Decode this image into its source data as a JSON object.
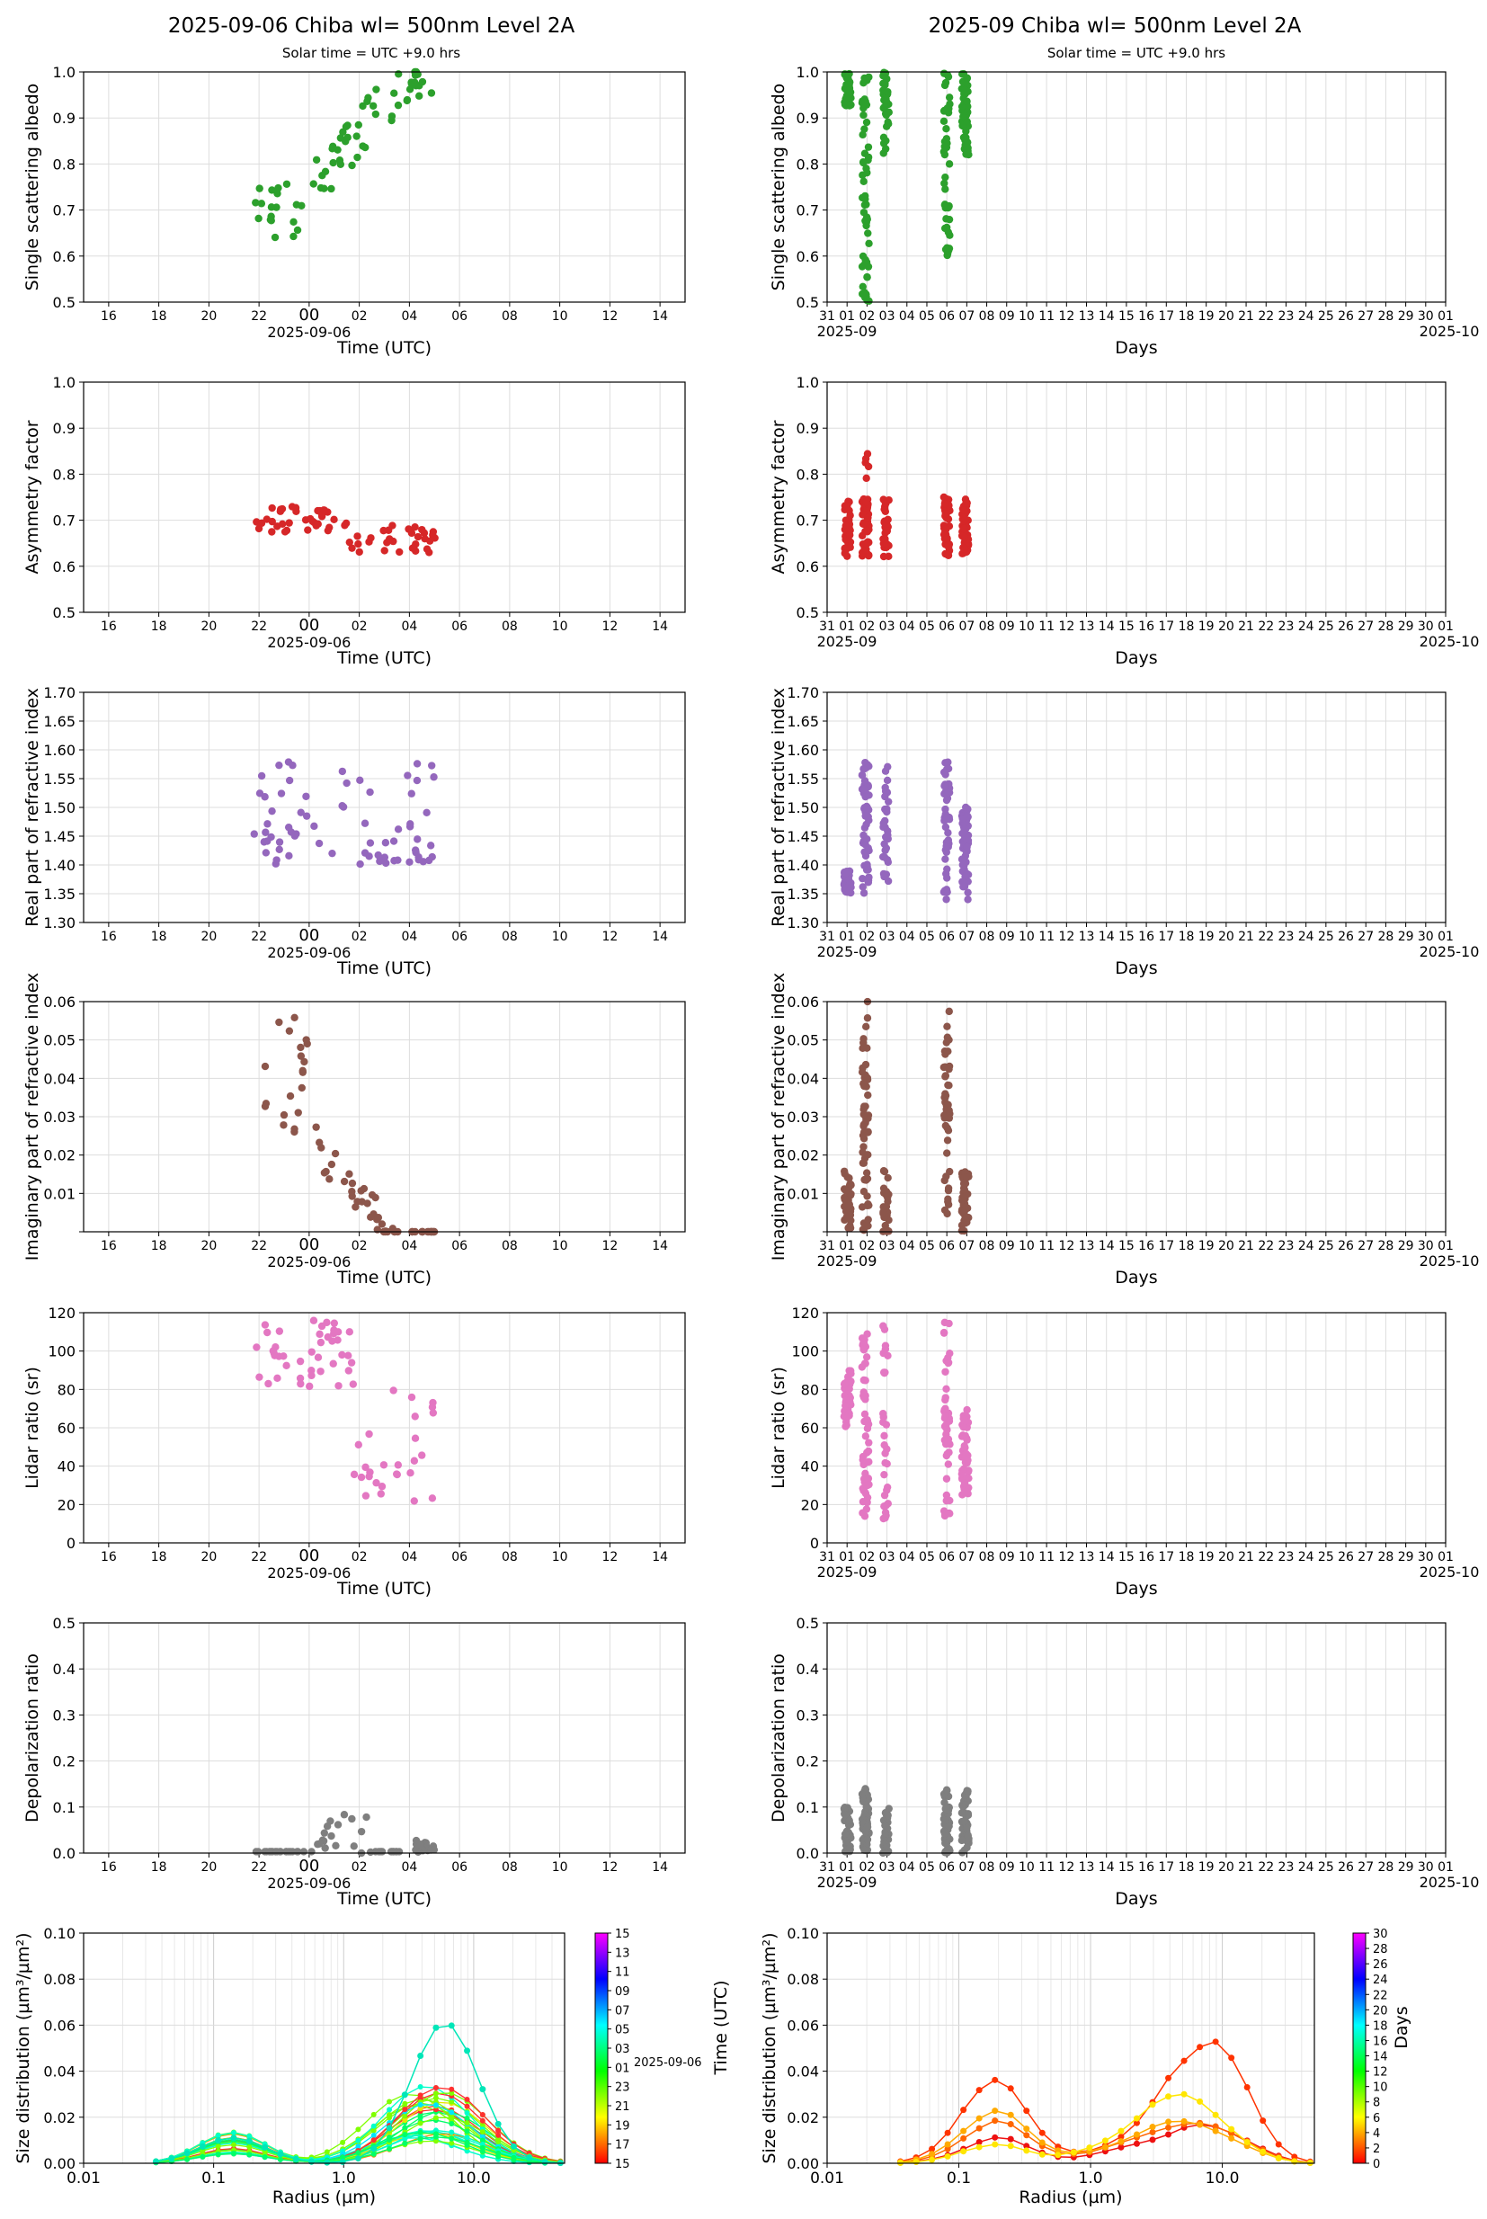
{
  "left_column": {
    "title": "2025-09-06  Chiba  wl= 500nm  Level 2A",
    "subtitle": "Solar time = UTC +9.0 hrs",
    "time_tick_labels": [
      "16",
      "18",
      "20",
      "22",
      "00",
      "02",
      "04",
      "06",
      "08",
      "10",
      "12",
      "14"
    ],
    "date_label": "2025-09-06",
    "xlabel": "Time (UTC)"
  },
  "right_column": {
    "title": "2025-09  Chiba  wl= 500nm  Level 2A",
    "subtitle": "Solar time = UTC +9.0 hrs",
    "day_tick_labels": [
      "31",
      "01",
      "02",
      "03",
      "04",
      "05",
      "06",
      "07",
      "08",
      "09",
      "10",
      "11",
      "12",
      "13",
      "14",
      "15",
      "16",
      "17",
      "18",
      "19",
      "20",
      "21",
      "22",
      "23",
      "24",
      "25",
      "26",
      "27",
      "28",
      "29",
      "30",
      "01"
    ],
    "start_date_label": "2025-09",
    "end_date_label": "2025-10",
    "xlabel": "Days"
  },
  "chart_data": [
    {
      "type": "scatter",
      "ylabel": "Single scattering albedo",
      "ylim": [
        0.5,
        1.0
      ],
      "yticks": [
        "0.5",
        "0.6",
        "0.7",
        "0.8",
        "0.9",
        "1.0"
      ],
      "color": "#2ca02c",
      "grid": true
    },
    {
      "type": "scatter",
      "ylabel": "Asymmetry factor",
      "ylim": [
        0.5,
        1.0
      ],
      "yticks": [
        "0.5",
        "0.6",
        "0.7",
        "0.8",
        "0.9",
        "1.0"
      ],
      "color": "#d62728",
      "grid": true
    },
    {
      "type": "scatter",
      "ylabel": "Real part of refractive index",
      "ylim": [
        1.3,
        1.7
      ],
      "yticks": [
        "1.30",
        "1.35",
        "1.40",
        "1.45",
        "1.50",
        "1.55",
        "1.60",
        "1.65",
        "1.70"
      ],
      "color": "#9467bd",
      "grid": true
    },
    {
      "type": "scatter",
      "ylabel": "Imaginary part of refractive index",
      "ylim": [
        0,
        0.06
      ],
      "yticks": [
        "",
        "0.01",
        "0.02",
        "0.03",
        "0.04",
        "0.05",
        "0.06"
      ],
      "color": "#8c564b",
      "grid": true
    },
    {
      "type": "scatter",
      "ylabel": "Lidar ratio (sr)",
      "ylim": [
        0,
        120
      ],
      "yticks": [
        "0",
        "20",
        "40",
        "60",
        "80",
        "100",
        "120"
      ],
      "color": "#e377c2",
      "grid": true
    },
    {
      "type": "scatter",
      "ylabel": "Depolarization ratio",
      "ylim": [
        0,
        0.5
      ],
      "yticks": [
        "0.0",
        "0.1",
        "0.2",
        "0.3",
        "0.4",
        "0.5"
      ],
      "color": "#7f7f7f",
      "grid": true
    },
    {
      "type": "line",
      "ylabel": "Size distribution (µm³/µm²)",
      "xlabel": "Radius (µm)",
      "xscale": "log",
      "xlim": [
        0.01,
        50
      ],
      "xticks": [
        "0.01",
        "0.1",
        "1.0",
        "10.0"
      ],
      "ylim": [
        0,
        0.1
      ],
      "yticks": [
        "0.00",
        "0.02",
        "0.04",
        "0.06",
        "0.08",
        "0.10"
      ],
      "grid": true
    }
  ],
  "left_size_colorbar": {
    "ticks": [
      "15",
      "17",
      "19",
      "21",
      "23",
      "01",
      "03",
      "05",
      "07",
      "09",
      "11",
      "13",
      "15"
    ],
    "date_label": "2025-09-06",
    "label": "Time (UTC)"
  },
  "right_size_colorbar": {
    "ticks": [
      "0",
      "2",
      "4",
      "6",
      "8",
      "10",
      "12",
      "14",
      "16",
      "18",
      "20",
      "22",
      "24",
      "26",
      "28",
      "30"
    ],
    "label": "Days"
  },
  "right_size_series": [
    {
      "color": "#ee1111",
      "values": [
        0.0003,
        0.0008,
        0.0018,
        0.0035,
        0.0062,
        0.0092,
        0.0112,
        0.0105,
        0.0075,
        0.0046,
        0.0028,
        0.0026,
        0.0036,
        0.0052,
        0.0069,
        0.0085,
        0.0102,
        0.0125,
        0.0155,
        0.0168,
        0.0158,
        0.0132,
        0.0098,
        0.0063,
        0.0032,
        0.0012,
        0.0003
      ]
    },
    {
      "color": "#ff3300",
      "values": [
        0.0008,
        0.0025,
        0.0062,
        0.0132,
        0.0232,
        0.0318,
        0.0362,
        0.0325,
        0.0228,
        0.0132,
        0.0072,
        0.005,
        0.0054,
        0.0078,
        0.0115,
        0.0175,
        0.0265,
        0.037,
        0.0445,
        0.0505,
        0.0528,
        0.0458,
        0.033,
        0.0185,
        0.0082,
        0.0028,
        0.0007
      ]
    },
    {
      "color": "#ff6600",
      "values": [
        0.0004,
        0.0012,
        0.003,
        0.0062,
        0.0108,
        0.0152,
        0.0185,
        0.017,
        0.0122,
        0.0075,
        0.0046,
        0.004,
        0.0048,
        0.0068,
        0.009,
        0.0112,
        0.0135,
        0.0155,
        0.017,
        0.0175,
        0.016,
        0.013,
        0.0095,
        0.0058,
        0.0028,
        0.001,
        0.0003
      ]
    },
    {
      "color": "#ffaa00",
      "values": [
        0.0005,
        0.0016,
        0.004,
        0.0082,
        0.014,
        0.0195,
        0.0228,
        0.021,
        0.015,
        0.009,
        0.0055,
        0.0046,
        0.0052,
        0.007,
        0.0095,
        0.0125,
        0.0158,
        0.018,
        0.0182,
        0.0168,
        0.014,
        0.0108,
        0.0075,
        0.0045,
        0.0022,
        0.0008,
        0.0002
      ]
    },
    {
      "color": "#ffe600",
      "values": [
        0.0002,
        0.0006,
        0.0015,
        0.003,
        0.0052,
        0.007,
        0.0082,
        0.0075,
        0.0055,
        0.0038,
        0.0036,
        0.0048,
        0.0068,
        0.0098,
        0.014,
        0.0195,
        0.0255,
        0.029,
        0.03,
        0.0268,
        0.021,
        0.0148,
        0.0092,
        0.005,
        0.0022,
        0.0008,
        0.0002
      ]
    }
  ]
}
